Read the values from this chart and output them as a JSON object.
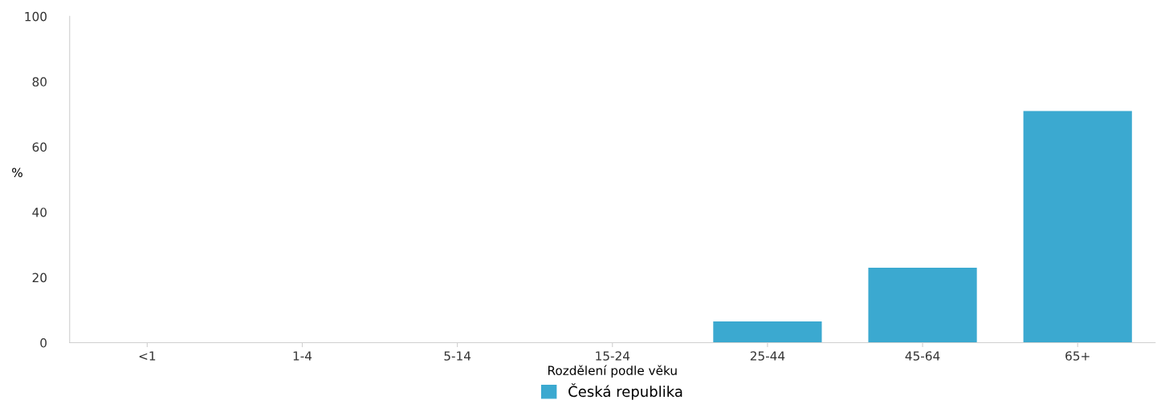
{
  "chart_data": {
    "type": "bar",
    "xlabel": "Rozdělení podle věku",
    "ylabel": "%",
    "categories": [
      "<1",
      "1-4",
      "5-14",
      "15-24",
      "25-44",
      "45-64",
      "65+"
    ],
    "series": [
      {
        "name": "Česká republika",
        "color": "#3ba9d0",
        "values": [
          0,
          0,
          0,
          0,
          6.5,
          23,
          71
        ]
      }
    ],
    "ylim": [
      0,
      100
    ],
    "yticks": [
      0,
      20,
      40,
      60,
      80,
      100
    ],
    "grid": false,
    "legend": "bottom"
  }
}
